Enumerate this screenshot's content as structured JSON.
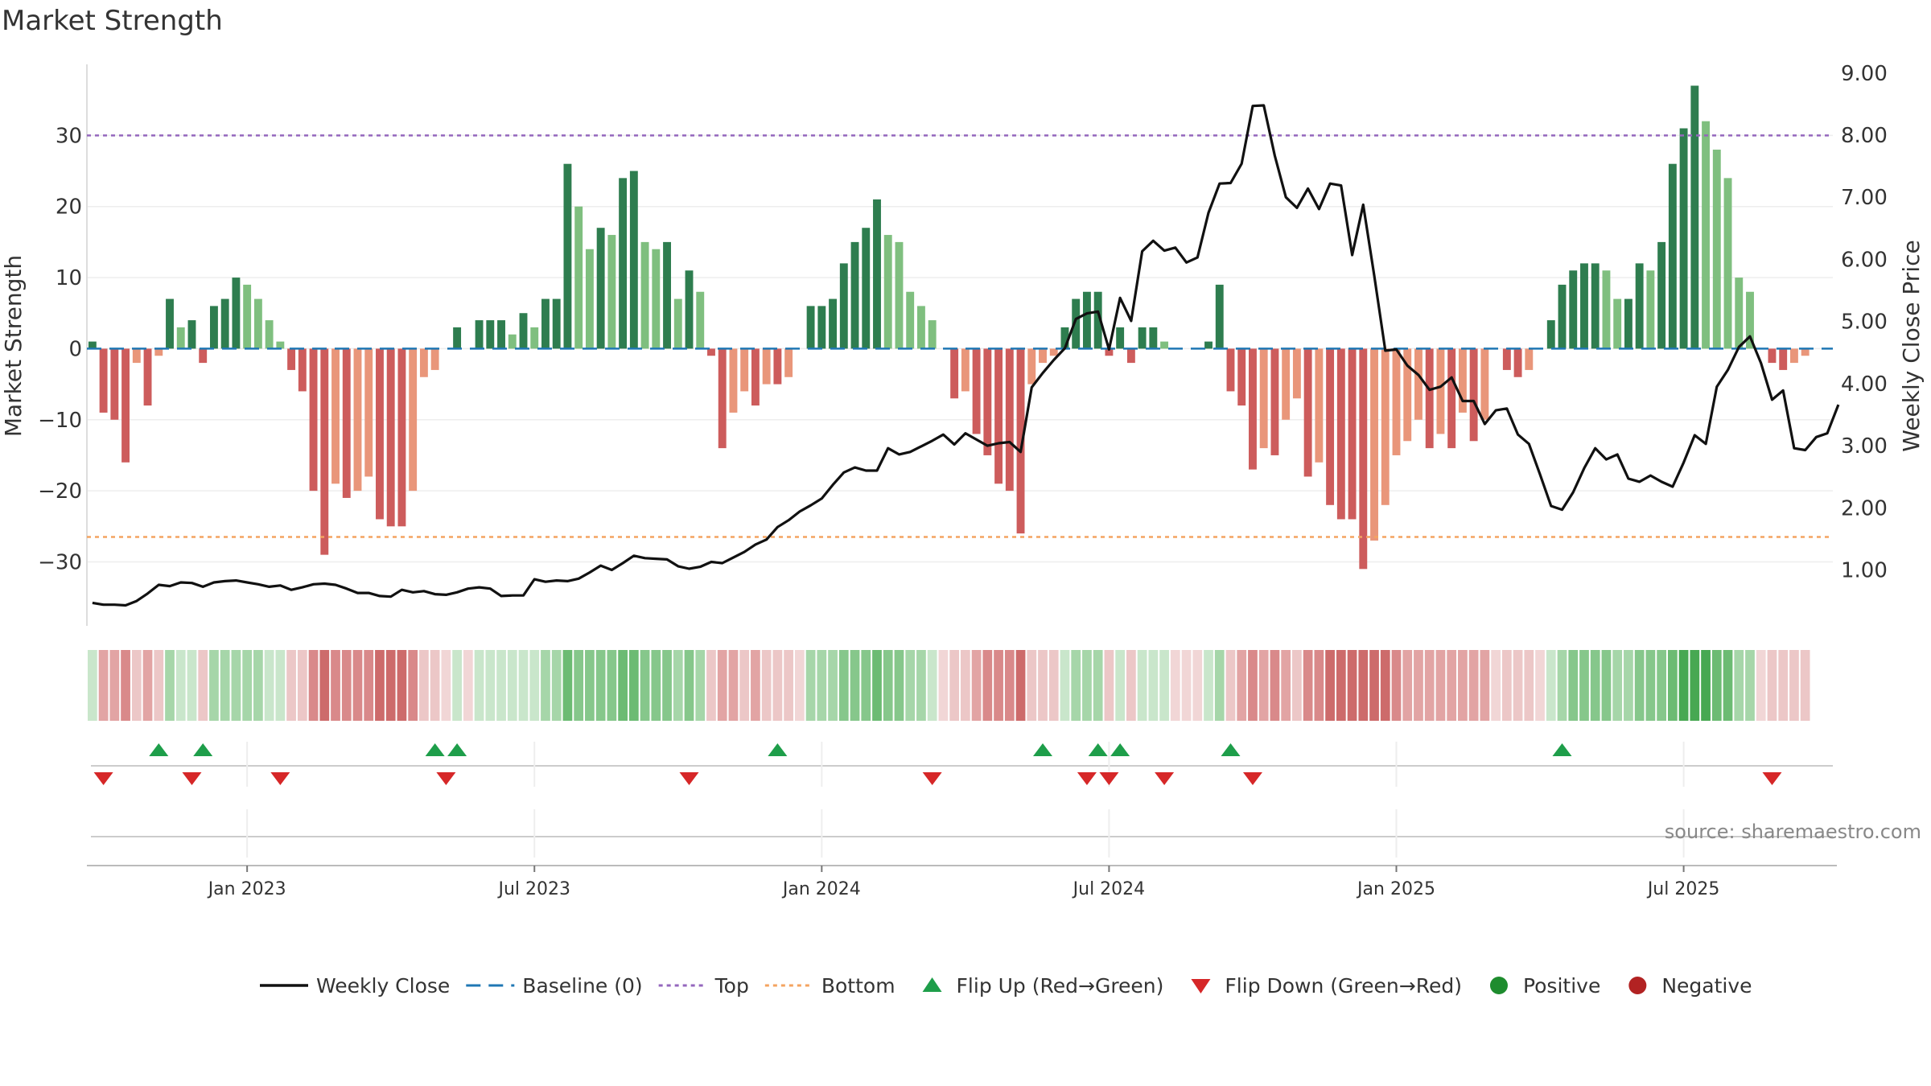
{
  "title": "Market Strength",
  "source": "source: sharemaestro.com",
  "colors": {
    "posDark": "#2e7d4f",
    "posLight": "#7fbf7f",
    "negDark": "#cd5c5c",
    "negLight": "#e9967a",
    "price": "#111111",
    "baseline": "#1f77b4",
    "top": "#9467bd",
    "bottom": "#f4a460",
    "flipUp": "#1e9e4a",
    "flipDown": "#d62728",
    "positive": "#1e8c2e",
    "negative": "#b22222"
  },
  "chart_data": {
    "type": "bar+line",
    "title": "Market Strength",
    "y_left": {
      "label": "Market Strength",
      "ticks": [
        30,
        20,
        10,
        0,
        -10,
        -20,
        -30
      ],
      "tick_labels": [
        "30",
        "20",
        "10",
        "0",
        "−10",
        "−20",
        "−30"
      ],
      "range": [
        -39,
        40
      ]
    },
    "y_right": {
      "label": "Weekly Close Price",
      "ticks": [
        9,
        8,
        7,
        6,
        5,
        4,
        3,
        2,
        1
      ],
      "tick_labels": [
        "9.00",
        "8.00",
        "7.00",
        "6.00",
        "5.00",
        "4.00",
        "3.00",
        "2.00",
        "1.00"
      ],
      "range": [
        0.1,
        9.14
      ]
    },
    "x_axis": {
      "tick_labels": [
        "Jan 2023",
        "Jul 2023",
        "Jan 2024",
        "Jul 2024",
        "Jan 2025",
        "Jul 2025"
      ],
      "tick_weeks": [
        14,
        40,
        66,
        92,
        118,
        144
      ],
      "weeks_total": 158
    },
    "top_line": 30,
    "bottom_line": -26.5,
    "strength": [
      1,
      -9,
      -10,
      -16,
      -2,
      -8,
      -1,
      7,
      3,
      4,
      -2,
      6,
      7,
      10,
      9,
      7,
      4,
      1,
      -3,
      -6,
      -20,
      -29,
      -19,
      -21,
      -20,
      -18,
      -24,
      -25,
      -25,
      -20,
      -4,
      -3,
      0,
      3,
      0,
      4,
      4,
      4,
      2,
      5,
      3,
      7,
      7,
      26,
      20,
      14,
      17,
      16,
      24,
      25,
      15,
      14,
      15,
      7,
      11,
      8,
      -1,
      -14,
      -9,
      -6,
      -8,
      -5,
      -5,
      -4,
      0,
      6,
      6,
      7,
      12,
      15,
      17,
      21,
      16,
      15,
      8,
      6,
      4,
      0,
      -7,
      -6,
      -12,
      -15,
      -19,
      -20,
      -26,
      -5,
      -2,
      -1,
      3,
      7,
      8,
      8,
      -1,
      3,
      -2,
      3,
      3,
      1,
      0,
      0,
      0,
      1,
      9,
      -6,
      -8,
      -17,
      -14,
      -15,
      -10,
      -7,
      -18,
      -16,
      -22,
      -24,
      -24,
      -31,
      -27,
      -22,
      -15,
      -13,
      -10,
      -14,
      -12,
      -14,
      -9,
      -13,
      -10,
      0,
      -3,
      -4,
      -3,
      0,
      4,
      9,
      11,
      12,
      12,
      11,
      7,
      7,
      12,
      11,
      15,
      26,
      31,
      37,
      32,
      28,
      24,
      10,
      8,
      0,
      -2,
      -3,
      -2,
      -1
    ],
    "weekly_close": [
      0.47,
      0.44,
      0.44,
      0.43,
      0.5,
      0.62,
      0.76,
      0.74,
      0.8,
      0.79,
      0.73,
      0.8,
      0.82,
      0.83,
      0.8,
      0.77,
      0.73,
      0.75,
      0.68,
      0.72,
      0.77,
      0.78,
      0.76,
      0.7,
      0.63,
      0.63,
      0.58,
      0.57,
      0.68,
      0.64,
      0.66,
      0.61,
      0.6,
      0.64,
      0.7,
      0.72,
      0.7,
      0.58,
      0.59,
      0.59,
      0.85,
      0.81,
      0.83,
      0.82,
      0.86,
      0.96,
      1.07,
      1.0,
      1.11,
      1.23,
      1.19,
      1.18,
      1.17,
      1.06,
      1.02,
      1.05,
      1.13,
      1.11,
      1.2,
      1.29,
      1.41,
      1.49,
      1.69,
      1.8,
      1.94,
      2.04,
      2.15,
      2.37,
      2.57,
      2.65,
      2.6,
      2.6,
      2.96,
      2.86,
      2.9,
      2.99,
      3.08,
      3.18,
      3.02,
      3.2,
      3.1,
      3.0,
      3.04,
      3.06,
      2.9,
      3.94,
      4.17,
      4.38,
      4.57,
      5.04,
      5.13,
      5.16,
      4.55,
      5.38,
      5.01,
      6.13,
      6.3,
      6.14,
      6.19,
      5.95,
      6.03,
      6.75,
      7.22,
      7.23,
      7.54,
      8.47,
      8.48,
      7.67,
      7.0,
      6.83,
      7.14,
      6.81,
      7.22,
      7.19,
      6.07,
      6.88,
      5.74,
      4.53,
      4.55,
      4.29,
      4.14,
      3.9,
      3.95,
      4.1,
      3.72,
      3.72,
      3.35,
      3.57,
      3.6,
      3.18,
      3.03,
      2.54,
      2.03,
      1.97,
      2.25,
      2.64,
      2.96,
      2.78,
      2.86,
      2.47,
      2.42,
      2.52,
      2.42,
      2.34,
      2.73,
      3.17,
      3.03,
      3.95,
      4.22,
      4.59,
      4.76,
      4.33,
      3.74,
      3.89,
      2.96,
      2.93,
      3.14,
      3.2,
      3.66
    ],
    "flip_up_weeks": [
      6,
      10,
      31,
      33,
      62,
      86,
      91,
      93,
      103,
      133
    ],
    "flip_down_weeks": [
      1,
      9,
      17,
      32,
      54,
      76,
      90,
      92,
      97,
      105,
      152
    ],
    "legend": [
      "Weekly Close",
      "Baseline (0)",
      "Top",
      "Bottom",
      "Flip Up (Red→Green)",
      "Flip Down (Green→Red)",
      "Positive",
      "Negative"
    ]
  }
}
